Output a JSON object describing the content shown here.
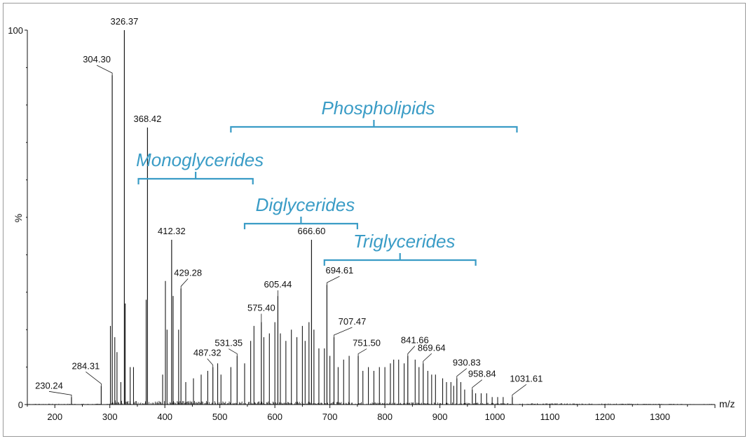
{
  "chart_data": {
    "type": "bar",
    "xlabel": "m/z",
    "ylabel": "%",
    "xlim": [
      150,
      1400
    ],
    "ylim": [
      0,
      100
    ],
    "x_ticks": [
      200,
      300,
      400,
      500,
      600,
      700,
      800,
      900,
      1000,
      1100,
      1200,
      1300
    ],
    "y_ticks": [
      0,
      100
    ],
    "labeled_peaks": [
      {
        "mz": "230.24",
        "value": 230.24,
        "intensity": 2
      },
      {
        "mz": "284.31",
        "value": 284.31,
        "intensity": 5
      },
      {
        "mz": "304.30",
        "value": 304.3,
        "intensity": 88
      },
      {
        "mz": "326.37",
        "value": 326.37,
        "intensity": 100
      },
      {
        "mz": "368.42",
        "value": 368.42,
        "intensity": 74
      },
      {
        "mz": "412.32",
        "value": 412.32,
        "intensity": 44
      },
      {
        "mz": "429.28",
        "value": 429.28,
        "intensity": 31
      },
      {
        "mz": "487.32",
        "value": 487.32,
        "intensity": 10
      },
      {
        "mz": "531.35",
        "value": 531.35,
        "intensity": 13
      },
      {
        "mz": "575.40",
        "value": 575.4,
        "intensity": 22
      },
      {
        "mz": "605.44",
        "value": 605.44,
        "intensity": 29
      },
      {
        "mz": "666.60",
        "value": 666.6,
        "intensity": 44
      },
      {
        "mz": "694.61",
        "value": 694.61,
        "intensity": 32
      },
      {
        "mz": "707.47",
        "value": 707.47,
        "intensity": 18
      },
      {
        "mz": "751.50",
        "value": 751.5,
        "intensity": 13
      },
      {
        "mz": "841.66",
        "value": 841.66,
        "intensity": 13
      },
      {
        "mz": "869.64",
        "value": 869.64,
        "intensity": 11
      },
      {
        "mz": "930.83",
        "value": 930.83,
        "intensity": 7
      },
      {
        "mz": "958.84",
        "value": 958.84,
        "intensity": 4
      },
      {
        "mz": "1031.61",
        "value": 1031.61,
        "intensity": 2
      }
    ],
    "unlabeled_peaks": [
      [
        301,
        21
      ],
      [
        309,
        18
      ],
      [
        313,
        14
      ],
      [
        320,
        6
      ],
      [
        328,
        27
      ],
      [
        337,
        10
      ],
      [
        343,
        10
      ],
      [
        366,
        28
      ],
      [
        396,
        8
      ],
      [
        401,
        33
      ],
      [
        404,
        20
      ],
      [
        415,
        29
      ],
      [
        425,
        20
      ],
      [
        438,
        6
      ],
      [
        452,
        7
      ],
      [
        466,
        8
      ],
      [
        478,
        9
      ],
      [
        496,
        11
      ],
      [
        502,
        8
      ],
      [
        520,
        10
      ],
      [
        545,
        11
      ],
      [
        556,
        17
      ],
      [
        562,
        21
      ],
      [
        580,
        18
      ],
      [
        590,
        19
      ],
      [
        600,
        22
      ],
      [
        610,
        19
      ],
      [
        620,
        17
      ],
      [
        630,
        20
      ],
      [
        640,
        18
      ],
      [
        650,
        21
      ],
      [
        655,
        17
      ],
      [
        662,
        22
      ],
      [
        671,
        20
      ],
      [
        680,
        15
      ],
      [
        690,
        15
      ],
      [
        700,
        13
      ],
      [
        715,
        10
      ],
      [
        725,
        12
      ],
      [
        735,
        13
      ],
      [
        760,
        9
      ],
      [
        770,
        10
      ],
      [
        780,
        9
      ],
      [
        790,
        10
      ],
      [
        800,
        10
      ],
      [
        810,
        11
      ],
      [
        816,
        12
      ],
      [
        825,
        12
      ],
      [
        835,
        11
      ],
      [
        855,
        12
      ],
      [
        862,
        10
      ],
      [
        878,
        9
      ],
      [
        885,
        8
      ],
      [
        892,
        8
      ],
      [
        905,
        7
      ],
      [
        912,
        6
      ],
      [
        920,
        6
      ],
      [
        925,
        5
      ],
      [
        938,
        6
      ],
      [
        945,
        4
      ],
      [
        965,
        3
      ],
      [
        975,
        3
      ],
      [
        985,
        3
      ],
      [
        995,
        2
      ],
      [
        1005,
        2
      ],
      [
        1015,
        2
      ]
    ],
    "region_brackets": [
      {
        "label": "Phospholipids",
        "x_start": 520,
        "x_end": 1040
      },
      {
        "label": "Monoglycerides",
        "x_start": 352,
        "x_end": 560
      },
      {
        "label": "Diglycerides",
        "x_start": 545,
        "x_end": 750
      },
      {
        "label": "Triglycerides",
        "x_start": 690,
        "x_end": 965
      }
    ],
    "colors": {
      "peaks": "#1a1a1a",
      "axis": "#111111",
      "brackets": "#3a9cc6"
    }
  }
}
